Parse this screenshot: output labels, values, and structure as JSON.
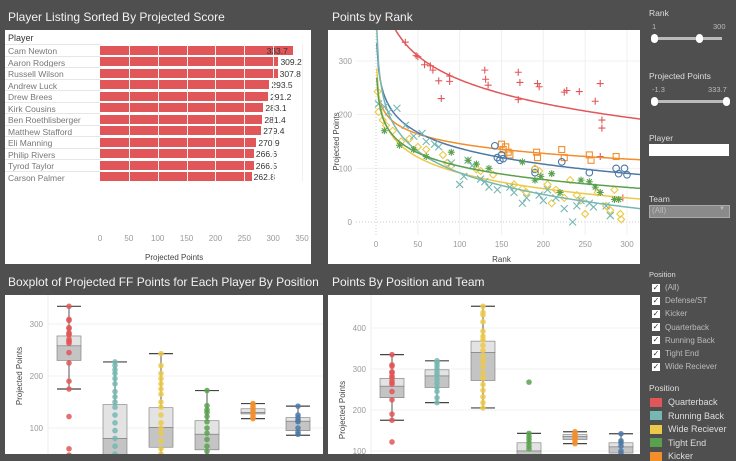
{
  "colors": {
    "Quarterback": "#e15759",
    "Running Back": "#76b7b2",
    "Wide Reciever": "#edc948",
    "Tight End": "#59a14f",
    "Kicker": "#f28e2b",
    "Defense/ST": "#4e79a7"
  },
  "chart_data": [
    {
      "type": "bar",
      "title": "Player Listing Sorted By Projected Score",
      "row_header": "Player",
      "xlabel": "Projected Points",
      "xlim": [
        0,
        350
      ],
      "ticks": [
        "0",
        "50",
        "100",
        "150",
        "200",
        "250",
        "300",
        "350"
      ],
      "categories": [
        "Cam Newton",
        "Aaron Rodgers",
        "Russell Wilson",
        "Andrew Luck",
        "Drew Brees",
        "Kirk Cousins",
        "Ben Roethlisberger",
        "Matthew Stafford",
        "Eli Manning",
        "Philip Rivers",
        "Tyrod Taylor",
        "Carson Palmer"
      ],
      "values": [
        333.7,
        309.2,
        307.8,
        293.5,
        291.2,
        283.1,
        281.4,
        279.4,
        270.9,
        266.6,
        266.5,
        262.8
      ],
      "labels": [
        "333.7",
        "309.2",
        "307.8",
        "293.5",
        "291.2",
        "283.1",
        "281.4",
        "279.4",
        "270.9",
        "266.6",
        "266.5",
        "262.8"
      ]
    },
    {
      "type": "scatter",
      "title": "Points by Rank",
      "xlabel": "Rank",
      "ylabel": "Projected Points",
      "xlim": [
        -15,
        310
      ],
      "ylim": [
        -30,
        350
      ],
      "xticks": [
        "0",
        "50",
        "100",
        "150",
        "200",
        "250",
        "300"
      ],
      "yticks": [
        "0",
        "100",
        "200",
        "300"
      ],
      "trendline": "logarithmic",
      "series": [
        {
          "position": "Quarterback",
          "marker": "plus",
          "points": [
            [
              35,
              335
            ],
            [
              48,
              310
            ],
            [
              50,
              308
            ],
            [
              58,
              293
            ],
            [
              65,
              291
            ],
            [
              68,
              283
            ],
            [
              75,
              263
            ],
            [
              78,
              230
            ],
            [
              88,
              272
            ],
            [
              88,
              262
            ],
            [
              130,
              283
            ],
            [
              131,
              266
            ],
            [
              134,
              255
            ],
            [
              170,
              279
            ],
            [
              172,
              260
            ],
            [
              170,
              228
            ],
            [
              193,
              258
            ],
            [
              195,
              252
            ],
            [
              225,
              242
            ],
            [
              228,
              245
            ],
            [
              243,
              243
            ],
            [
              262,
              225
            ],
            [
              268,
              258
            ],
            [
              270,
              190
            ],
            [
              270,
              175
            ],
            [
              268,
              122
            ],
            [
              295,
              45
            ]
          ]
        },
        {
          "position": "Kicker",
          "marker": "square",
          "points": [
            [
              150,
              145
            ],
            [
              152,
              135
            ],
            [
              155,
              140
            ],
            [
              158,
              130
            ],
            [
              160,
              125
            ],
            [
              192,
              130
            ],
            [
              193,
              120
            ],
            [
              222,
              135
            ],
            [
              225,
              120
            ],
            [
              255,
              125
            ],
            [
              257,
              115
            ],
            [
              287,
              122
            ]
          ]
        },
        {
          "position": "Defense/ST",
          "marker": "circle",
          "points": [
            [
              142,
              142
            ],
            [
              145,
              120
            ],
            [
              148,
              115
            ],
            [
              150,
              125
            ],
            [
              152,
              118
            ],
            [
              190,
              92
            ],
            [
              190,
              98
            ],
            [
              222,
              112
            ],
            [
              255,
              92
            ],
            [
              287,
              100
            ],
            [
              290,
              90
            ],
            [
              297,
              100
            ],
            [
              300,
              88
            ]
          ]
        },
        {
          "position": "Wide Reciever",
          "marker": "diamond",
          "points": [
            [
              2,
              243
            ],
            [
              3,
              205
            ],
            [
              8,
              190
            ],
            [
              12,
              180
            ],
            [
              20,
              170
            ],
            [
              30,
              150
            ],
            [
              40,
              155
            ],
            [
              50,
              140
            ],
            [
              60,
              135
            ],
            [
              80,
              125
            ],
            [
              85,
              110
            ],
            [
              90,
              105
            ],
            [
              120,
              98
            ],
            [
              125,
              95
            ],
            [
              140,
              88
            ],
            [
              165,
              70
            ],
            [
              175,
              62
            ],
            [
              180,
              55
            ],
            [
              190,
              100
            ],
            [
              195,
              95
            ],
            [
              205,
              70
            ],
            [
              210,
              35
            ],
            [
              215,
              60
            ],
            [
              225,
              45
            ],
            [
              232,
              78
            ],
            [
              240,
              50
            ],
            [
              245,
              40
            ],
            [
              250,
              15
            ],
            [
              265,
              55
            ],
            [
              275,
              30
            ],
            [
              280,
              22
            ],
            [
              285,
              60
            ],
            [
              292,
              15
            ],
            [
              293,
              5
            ]
          ]
        },
        {
          "position": "Running Back",
          "marker": "x",
          "points": [
            [
              3,
              220
            ],
            [
              10,
              215
            ],
            [
              15,
              205
            ],
            [
              25,
              212
            ],
            [
              35,
              180
            ],
            [
              45,
              160
            ],
            [
              55,
              165
            ],
            [
              60,
              150
            ],
            [
              70,
              145
            ],
            [
              75,
              140
            ],
            [
              90,
              110
            ],
            [
              100,
              70
            ],
            [
              105,
              85
            ],
            [
              110,
              115
            ],
            [
              115,
              105
            ],
            [
              125,
              80
            ],
            [
              130,
              75
            ],
            [
              135,
              65
            ],
            [
              145,
              60
            ],
            [
              160,
              65
            ],
            [
              165,
              55
            ],
            [
              175,
              35
            ],
            [
              180,
              45
            ],
            [
              195,
              50
            ],
            [
              200,
              40
            ],
            [
              205,
              60
            ],
            [
              215,
              45
            ],
            [
              225,
              25
            ],
            [
              235,
              0
            ],
            [
              240,
              30
            ],
            [
              245,
              40
            ],
            [
              255,
              35
            ],
            [
              260,
              28
            ],
            [
              275,
              30
            ],
            [
              280,
              12
            ]
          ]
        },
        {
          "position": "Tight End",
          "marker": "asterisk",
          "points": [
            [
              10,
              170
            ],
            [
              28,
              143
            ],
            [
              45,
              135
            ],
            [
              60,
              122
            ],
            [
              90,
              130
            ],
            [
              110,
              115
            ],
            [
              120,
              108
            ],
            [
              135,
              100
            ],
            [
              175,
              112
            ],
            [
              190,
              78
            ],
            [
              197,
              85
            ],
            [
              210,
              90
            ],
            [
              220,
              55
            ],
            [
              245,
              78
            ],
            [
              255,
              75
            ],
            [
              262,
              65
            ],
            [
              268,
              55
            ],
            [
              285,
              42
            ],
            [
              290,
              42
            ]
          ]
        }
      ]
    },
    {
      "type": "boxplot",
      "title": "Boxplot of Projected FF Points for Each Player By Position",
      "ylabel": "Projected Points",
      "yticks": [
        "100",
        "200",
        "300"
      ],
      "boxes": [
        {
          "position": "Quarterback",
          "lower": 175,
          "q1": 230,
          "median": 258,
          "q3": 277,
          "upper": 334,
          "points": [
            334,
            309,
            307,
            293,
            291,
            283,
            281,
            279,
            271,
            267,
            266,
            263,
            245,
            225,
            190,
            175,
            122,
            60,
            48
          ]
        },
        {
          "position": "Running Back",
          "lower": 0,
          "q1": 30,
          "median": 80,
          "q3": 145,
          "upper": 227,
          "points": [
            227,
            220,
            212,
            205,
            195,
            185,
            170,
            160,
            150,
            140,
            125,
            110,
            95,
            80,
            65,
            50
          ]
        },
        {
          "position": "Wide Reciever",
          "lower": 0,
          "q1": 63,
          "median": 101,
          "q3": 139,
          "upper": 243,
          "points": [
            243,
            220,
            205,
            195,
            185,
            175,
            165,
            150,
            140,
            125,
            110,
            100,
            90,
            75,
            60,
            50
          ]
        },
        {
          "position": "Tight End",
          "lower": 20,
          "q1": 58,
          "median": 88,
          "q3": 114,
          "upper": 172,
          "points": [
            172,
            143,
            135,
            130,
            122,
            112,
            100,
            90,
            78,
            65,
            55
          ]
        },
        {
          "position": "Kicker",
          "lower": 118,
          "q1": 127,
          "median": 130,
          "q3": 137,
          "upper": 147,
          "points": [
            147,
            145,
            140,
            135,
            130,
            125,
            120,
            118
          ]
        },
        {
          "position": "Defense/ST",
          "lower": 86,
          "q1": 95,
          "median": 113,
          "q3": 120,
          "upper": 142,
          "points": [
            142,
            125,
            120,
            115,
            112,
            100,
            92,
            88
          ]
        }
      ]
    },
    {
      "type": "boxplot",
      "title": "Points By Position and Team",
      "ylabel": "Projected Points",
      "yticks": [
        "100",
        "200",
        "300",
        "400"
      ],
      "boxes": [
        {
          "position": "Quarterback",
          "lower": 175,
          "q1": 230,
          "median": 258,
          "q3": 277,
          "upper": 335,
          "points": [
            335,
            310,
            307,
            293,
            291,
            283,
            279,
            271,
            266,
            263,
            245,
            225,
            190,
            175,
            122
          ]
        },
        {
          "position": "Running Back",
          "lower": 218,
          "q1": 255,
          "median": 283,
          "q3": 298,
          "upper": 320,
          "points": [
            320,
            315,
            308,
            300,
            292,
            285,
            275,
            265,
            255,
            245,
            230,
            218
          ]
        },
        {
          "position": "Wide Reciever",
          "lower": 205,
          "q1": 272,
          "median": 340,
          "q3": 368,
          "upper": 453,
          "points": [
            453,
            438,
            432,
            415,
            392,
            380,
            372,
            358,
            345,
            330,
            318,
            305,
            290,
            278,
            262,
            248,
            232,
            218,
            205
          ]
        },
        {
          "position": "Tight End",
          "lower": 60,
          "q1": 80,
          "median": 100,
          "q3": 120,
          "upper": 143,
          "points": [
            268,
            143,
            135,
            128,
            120,
            112,
            105
          ]
        },
        {
          "position": "Kicker",
          "lower": 118,
          "q1": 128,
          "median": 135,
          "q3": 140,
          "upper": 147,
          "points": [
            147,
            142,
            138,
            133,
            128,
            122,
            118
          ]
        },
        {
          "position": "Defense/ST",
          "lower": 80,
          "q1": 95,
          "median": 110,
          "q3": 120,
          "upper": 142,
          "points": [
            142,
            125,
            120,
            112,
            100,
            95
          ]
        }
      ]
    }
  ],
  "filters": {
    "rank": {
      "label": "Rank",
      "min": "1",
      "max": "300",
      "range": [
        1,
        300
      ],
      "selected": [
        1,
        200
      ]
    },
    "projected": {
      "label": "Projected Points",
      "min": "-1.3",
      "max": "333.7",
      "range": [
        -1.3,
        333.7
      ],
      "selected": [
        -1.3,
        333.7
      ]
    },
    "player": {
      "label": "Player",
      "value": ""
    },
    "team": {
      "label": "Team",
      "value": "(All)"
    },
    "position": {
      "label": "Position",
      "items": [
        "(All)",
        "Defense/ST",
        "Kicker",
        "Quarterback",
        "Running Back",
        "Tight End",
        "Wide Reciever"
      ],
      "check": "✓"
    }
  },
  "legend": {
    "title": "Position",
    "items": [
      "Quarterback",
      "Running Back",
      "Wide Reciever",
      "Tight End",
      "Kicker"
    ]
  }
}
